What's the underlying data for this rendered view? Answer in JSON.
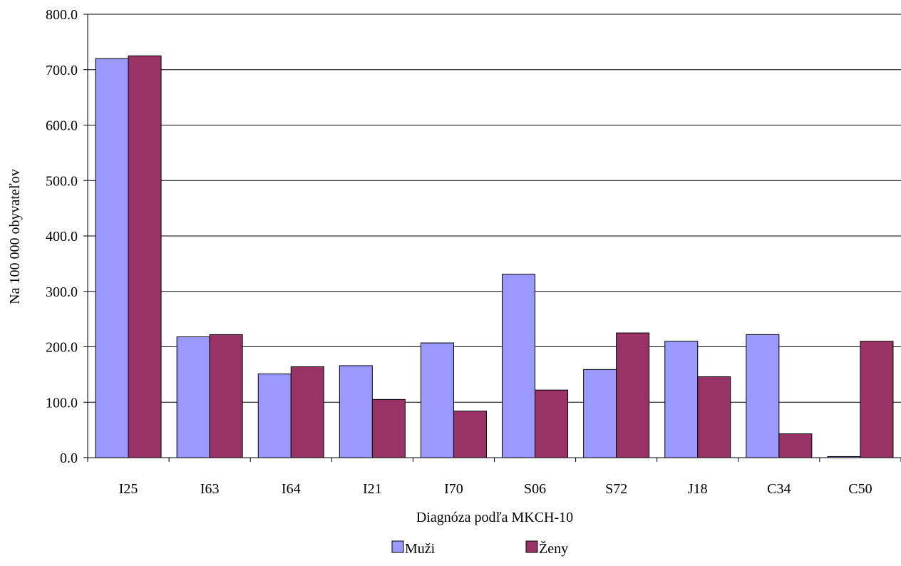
{
  "chart_data": {
    "type": "bar",
    "title": "",
    "xlabel": "Diagnóza podľa MKCH-10",
    "ylabel": "Na 100 000 obyvateľov",
    "ylim": [
      0,
      800
    ],
    "ytick_step": 100,
    "ytick_labels": [
      "0.0",
      "100.0",
      "200.0",
      "300.0",
      "400.0",
      "500.0",
      "600.0",
      "700.0",
      "800.0"
    ],
    "grid": true,
    "legend_position": "bottom",
    "categories": [
      "I25",
      "I63",
      "I64",
      "I21",
      "I70",
      "S06",
      "S72",
      "J18",
      "C34",
      "C50"
    ],
    "series": [
      {
        "name": "Muži",
        "color": "#9999ff",
        "values": [
          720,
          218,
          151,
          166,
          207,
          331,
          159,
          210,
          222,
          2
        ]
      },
      {
        "name": "Ženy",
        "color": "#993366",
        "values": [
          725,
          222,
          164,
          105,
          84,
          122,
          225,
          146,
          43,
          210
        ]
      }
    ]
  }
}
